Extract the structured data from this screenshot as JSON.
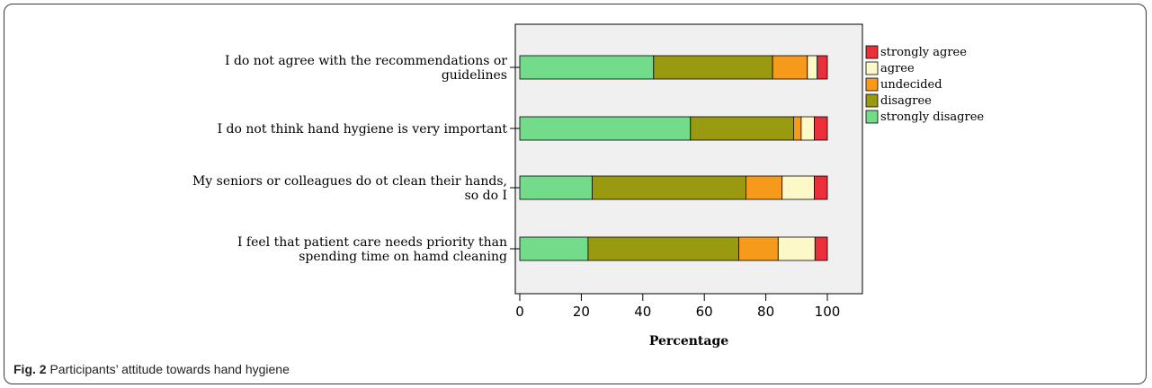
{
  "caption": {
    "label": "Fig. 2",
    "text": "Participants’ attitude towards hand hygiene"
  },
  "chart_data": {
    "type": "bar",
    "orientation": "horizontal",
    "stacked": true,
    "xlabel": "Percentage",
    "ylabel": "",
    "xlim": [
      0,
      100
    ],
    "xticks": [
      0,
      20,
      40,
      60,
      80,
      100
    ],
    "grid": false,
    "legend_position": "right",
    "categories": [
      [
        "I do not agree with the recommendations or",
        "guidelines"
      ],
      [
        "I do not think hand hygiene is very important"
      ],
      [
        "My seniors or colleagues do  ot clean their hands,",
        "so do I"
      ],
      [
        "I feel that patient care needs priority than",
        "spending time on hamd cleaning"
      ]
    ],
    "series": [
      {
        "name": "strongly disagree",
        "color": "#72dc8a",
        "values": [
          43.5,
          55.5,
          23.5,
          22.2
        ]
      },
      {
        "name": "disagree",
        "color": "#999a10",
        "values": [
          38.7,
          33.5,
          50.0,
          49.0
        ]
      },
      {
        "name": "undecided",
        "color": "#f59a1a",
        "values": [
          11.3,
          2.5,
          11.8,
          12.8
        ]
      },
      {
        "name": "agree",
        "color": "#fdf8c8",
        "values": [
          3.2,
          4.3,
          10.5,
          12.0
        ]
      },
      {
        "name": "strongly agree",
        "color": "#ea2f3a",
        "values": [
          3.3,
          4.2,
          4.2,
          4.0
        ]
      }
    ],
    "legend_order": [
      "strongly agree",
      "agree",
      "undecided",
      "disagree",
      "strongly disagree"
    ]
  }
}
